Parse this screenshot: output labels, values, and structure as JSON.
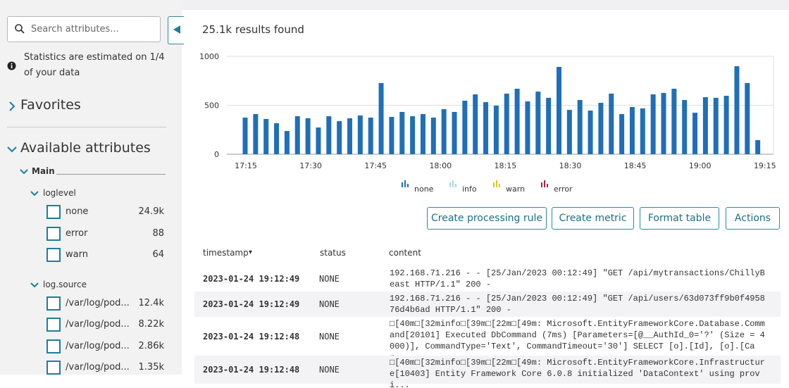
{
  "sidebar": {
    "search_placeholder": "Search attributes...",
    "stats_note": "Statistics are estimated on 1/4 of your data",
    "favorites": "Favorites",
    "available_attributes": "Available attributes",
    "main": "Main",
    "groups": [
      {
        "name": "loglevel",
        "items": [
          {
            "label": "none",
            "count": "24.9k"
          },
          {
            "label": "error",
            "count": "88"
          },
          {
            "label": "warn",
            "count": "64"
          }
        ]
      },
      {
        "name": "log.source",
        "items": [
          {
            "label": "/var/log/pod...",
            "count": "12.4k"
          },
          {
            "label": "/var/log/pod...",
            "count": "8.22k"
          },
          {
            "label": "/var/log/pod...",
            "count": "2.86k"
          },
          {
            "label": "/var/log/pod...",
            "count": "1.35k"
          }
        ]
      }
    ]
  },
  "results": {
    "summary": "25.1k results found"
  },
  "chart": {
    "type": "bar",
    "color": "#1f6fb8",
    "values": [
      374,
      410,
      360,
      317,
      237,
      388,
      367,
      273,
      388,
      338,
      367,
      396,
      374,
      727,
      381,
      432,
      388,
      410,
      374,
      460,
      432,
      547,
      612,
      532,
      496,
      619,
      669,
      540,
      640,
      576,
      892,
      453,
      554,
      446,
      525,
      619,
      410,
      482,
      468,
      612,
      626,
      669,
      554,
      424,
      583,
      576,
      597,
      899,
      727,
      144
    ],
    "ylim": [
      0,
      1000
    ],
    "yticks": [
      0,
      500,
      1000
    ],
    "x_labels": [
      "17:15",
      "17:30",
      "17:45",
      "18:00",
      "18:15",
      "18:30",
      "18:45",
      "19:00",
      "19:15"
    ],
    "legend": [
      {
        "name": "none",
        "color": "#1f6fb8"
      },
      {
        "name": "info",
        "color": "#a9d6ee"
      },
      {
        "name": "warn",
        "color": "#e5c21a"
      },
      {
        "name": "error",
        "color": "#b0203c"
      }
    ]
  },
  "actions": [
    "Create processing rule",
    "Create metric",
    "Format table",
    "Actions"
  ],
  "table": {
    "columns": [
      "timestamp",
      "status",
      "content"
    ],
    "sort_indicator": "▾",
    "rows": [
      [
        "2023-01-24 19:12:49",
        "NONE",
        "192.168.71.216 - - [25/Jan/2023 00:12:49] \"GET /api/mytransactions/ChillyBeast HTTP/1.1\" 200 -"
      ],
      [
        "2023-01-24 19:12:49",
        "NONE",
        "192.168.71.216 - - [25/Jan/2023 00:12:49] \"GET /api/users/63d073ff9b0f495876d4b6ad HTTP/1.1\" 200 -"
      ],
      [
        "2023-01-24 19:12:48",
        "NONE",
        "□[40m□[32minfo□[39m□[22m□[49m: Microsoft.EntityFrameworkCore.Database.Command[20101] Executed DbCommand (7ms) [Parameters=[@__AuthId_0='?' (Size = 4000)], CommandType='Text', CommandTimeout='30'] SELECT [o].[Id], [o].[Car..."
      ],
      [
        "2023-01-24 19:12:48",
        "NONE",
        "□[40m□[32minfo□[39m□[22m□[49m: Microsoft.EntityFrameworkCore.Infrastructure[10403] Entity Framework Core 6.0.8 initialized 'DataContext' using provi..."
      ]
    ]
  }
}
